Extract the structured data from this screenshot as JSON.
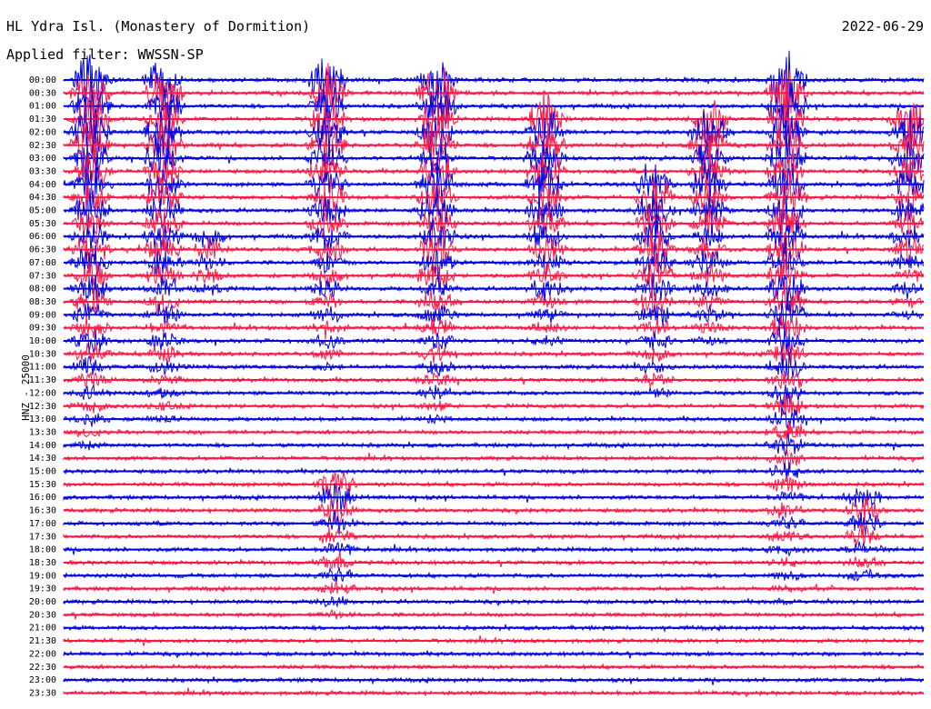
{
  "header": {
    "title": "HL Ydra Isl. (Monastery of Dormition)",
    "date": "2022-06-29",
    "filter": "Applied filter: WWSSN-SP"
  },
  "chart_data": {
    "type": "line",
    "title": "HL Ydra Isl. (Monastery of Dormition)",
    "ylabel": "HNZ - 25000",
    "xlabel": "",
    "trace_colors": [
      "#0000e6",
      "#ff1744"
    ],
    "rows": [
      "00:00",
      "00:30",
      "01:00",
      "01:30",
      "02:00",
      "02:30",
      "03:00",
      "03:30",
      "04:00",
      "04:30",
      "05:00",
      "05:30",
      "06:00",
      "06:30",
      "07:00",
      "07:30",
      "08:00",
      "08:30",
      "09:00",
      "09:30",
      "10:00",
      "10:30",
      "11:00",
      "11:30",
      "12:00",
      "12:30",
      "13:00",
      "13:30",
      "14:00",
      "14:30",
      "15:00",
      "15:30",
      "16:00",
      "16:30",
      "17:00",
      "17:30",
      "18:00",
      "18:30",
      "19:00",
      "19:30",
      "20:00",
      "20:30",
      "21:00",
      "21:30",
      "22:00",
      "22:30",
      "23:00",
      "23:30"
    ],
    "grid": false,
    "legend": "none"
  }
}
